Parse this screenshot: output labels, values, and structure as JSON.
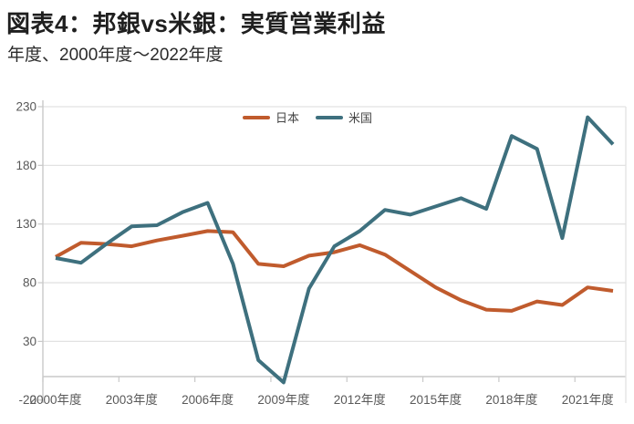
{
  "header": {
    "title": "図表4：邦銀vs米銀：実質営業利益",
    "subtitle": "年度、2000年度～2022年度"
  },
  "chart_data": {
    "type": "line",
    "x": [
      2000,
      2001,
      2002,
      2003,
      2004,
      2005,
      2006,
      2007,
      2008,
      2009,
      2010,
      2011,
      2012,
      2013,
      2014,
      2015,
      2016,
      2017,
      2018,
      2019,
      2020,
      2021,
      2022
    ],
    "x_tick_labels": [
      "2000年度",
      "2003年度",
      "2006年度",
      "2009年度",
      "2012年度",
      "2015年度",
      "2018年度",
      "2021年度"
    ],
    "x_tick_years": [
      2000,
      2003,
      2006,
      2009,
      2012,
      2015,
      2018,
      2021
    ],
    "y_ticks": [
      230,
      180,
      130,
      80,
      30,
      -20
    ],
    "ylim": [
      -20,
      230
    ],
    "xlabel": "",
    "ylabel": "",
    "grid": "horizontal",
    "legend_position": "top-center",
    "series": [
      {
        "name": "日本",
        "color": "#c05b2d",
        "values": [
          102,
          114,
          113,
          111,
          116,
          120,
          124,
          123,
          96,
          94,
          103,
          106,
          112,
          104,
          90,
          76,
          65,
          57,
          56,
          64,
          61,
          76,
          73
        ]
      },
      {
        "name": "米国",
        "color": "#3e707e",
        "values": [
          101,
          97,
          113,
          128,
          129,
          140,
          148,
          96,
          14,
          -5,
          75,
          111,
          124,
          142,
          138,
          145,
          152,
          143,
          205,
          194,
          118,
          221,
          198
        ]
      }
    ]
  },
  "style": {
    "gridline_color": "#e2e2e2",
    "axis_color": "#c9c9c9",
    "tick_label_color": "#595959"
  }
}
